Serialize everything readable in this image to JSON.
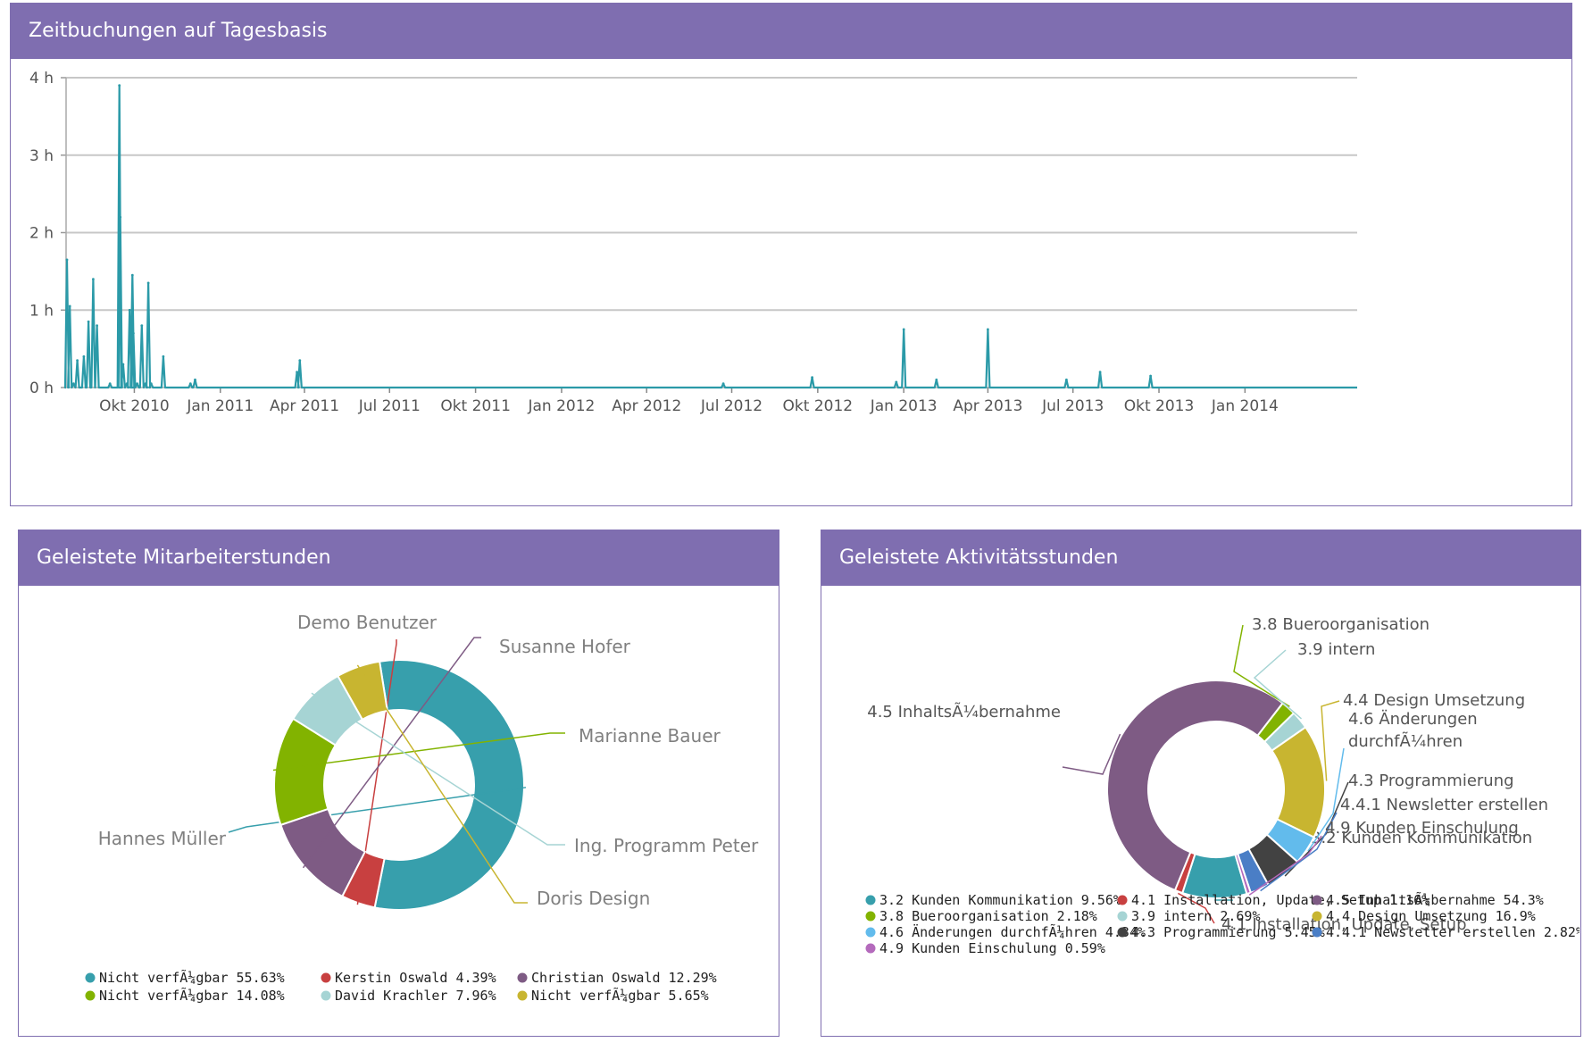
{
  "colors": {
    "header": "#7f6eb0",
    "line": "#2b9aa8",
    "grid": "#c7c7c7"
  },
  "time_panel": {
    "title": "Zeitbuchungen auf Tagesbasis"
  },
  "emp_panel": {
    "title": "Geleistete Mitarbeiterstunden"
  },
  "act_panel": {
    "title": "Geleistete Aktivitätsstunden"
  },
  "chart_data": [
    {
      "type": "line",
      "title": "Zeitbuchungen auf Tagesbasis",
      "ylim": [
        0,
        4
      ],
      "y_ticks": [
        "0 h",
        "1 h",
        "2 h",
        "3 h",
        "4 h"
      ],
      "x_ticks": [
        "Okt 2010",
        "Jan 2011",
        "Apr 2011",
        "Jul 2011",
        "Okt 2011",
        "Jan 2012",
        "Apr 2012",
        "Jul 2012",
        "Okt 2012",
        "Jan 2013",
        "Apr 2013",
        "Jul 2013",
        "Okt 2013",
        "Jan 2014"
      ],
      "x_range": [
        "2010-07-20",
        "2014-05-01"
      ],
      "grid": true,
      "series": [
        {
          "color": "#2b9aa8",
          "points": [
            [
              "2010-07-21",
              1.65
            ],
            [
              "2010-07-24",
              1.05
            ],
            [
              "2010-07-28",
              0.05
            ],
            [
              "2010-08-01",
              0.35
            ],
            [
              "2010-08-08",
              0.4
            ],
            [
              "2010-08-13",
              0.85
            ],
            [
              "2010-08-18",
              1.4
            ],
            [
              "2010-08-22",
              0.8
            ],
            [
              "2010-09-05",
              0.05
            ],
            [
              "2010-09-15",
              3.9
            ],
            [
              "2010-09-16",
              2.2
            ],
            [
              "2010-09-19",
              0.3
            ],
            [
              "2010-09-23",
              0.05
            ],
            [
              "2010-09-26",
              1.0
            ],
            [
              "2010-09-29",
              1.45
            ],
            [
              "2010-09-30",
              0.7
            ],
            [
              "2010-10-04",
              0.05
            ],
            [
              "2010-10-09",
              0.8
            ],
            [
              "2010-10-13",
              0.05
            ],
            [
              "2010-10-16",
              1.35
            ],
            [
              "2010-10-19",
              0.05
            ],
            [
              "2010-11-01",
              0.4
            ],
            [
              "2010-11-30",
              0.05
            ],
            [
              "2010-12-05",
              0.1
            ],
            [
              "2011-03-24",
              0.2
            ],
            [
              "2011-03-27",
              0.35
            ],
            [
              "2012-06-22",
              0.05
            ],
            [
              "2012-09-25",
              0.13
            ],
            [
              "2012-12-24",
              0.07
            ],
            [
              "2013-01-01",
              0.75
            ],
            [
              "2013-02-05",
              0.1
            ],
            [
              "2013-04-01",
              0.75
            ],
            [
              "2013-06-24",
              0.1
            ],
            [
              "2013-07-30",
              0.2
            ],
            [
              "2013-09-22",
              0.15
            ]
          ]
        }
      ]
    },
    {
      "type": "pie",
      "title": "Geleistete Mitarbeiterstunden",
      "slices": [
        {
          "label": "Hannes Müller",
          "legend": "Nicht verfÃ¼gbar 55.63%",
          "value": 55.63,
          "color": "#379fac"
        },
        {
          "label": "Demo Benutzer",
          "legend": "Kerstin Oswald 4.39%",
          "value": 4.39,
          "color": "#c84040"
        },
        {
          "label": "Susanne Hofer",
          "legend": "Christian Oswald 12.29%",
          "value": 12.29,
          "color": "#7e5b84"
        },
        {
          "label": "Marianne  Bauer",
          "legend": "Nicht verfÃ¼gbar 14.08%",
          "value": 14.08,
          "color": "#82b300"
        },
        {
          "label": "Ing. Programm Peter",
          "legend": "David Krachler 7.96%",
          "value": 7.96,
          "color": "#a6d4d4"
        },
        {
          "label": "Doris Design",
          "legend": "Nicht verfÃ¼gbar 5.65%",
          "value": 5.65,
          "color": "#c8b530"
        }
      ]
    },
    {
      "type": "pie",
      "title": "Geleistete Aktivitätsstunden",
      "slices": [
        {
          "label": "3.2  Kunden Kommunikation",
          "legend": "3.2  Kunden Kommunikation 9.56%",
          "value": 9.56,
          "color": "#379fac"
        },
        {
          "label": "4.1 Installation, Update, Setup",
          "legend": "4.1 Installation, Update, Setup 1.16%",
          "value": 1.16,
          "color": "#c84040"
        },
        {
          "label": "4.5 InhaltsÃ¼bernahme",
          "legend": "4.5 InhaltsÃ¼bernahme 54.3%",
          "value": 54.3,
          "color": "#7e5b84"
        },
        {
          "label": "3.8 Bueroorganisation",
          "legend": "3.8 Bueroorganisation 2.18%",
          "value": 2.18,
          "color": "#82b300"
        },
        {
          "label": "3.9 intern",
          "legend": "3.9 intern 2.69%",
          "value": 2.69,
          "color": "#a6d4d4"
        },
        {
          "label": "4.4 Design Umsetzung",
          "legend": "4.4 Design Umsetzung 16.9%",
          "value": 16.9,
          "color": "#c8b530"
        },
        {
          "label": "4.6 Änderungen durchfÃ¼hren",
          "legend": "4.6 Änderungen durchfÃ¼hren 4.34%",
          "value": 4.34,
          "color": "#62bbec"
        },
        {
          "label": "4.3 Programmierung",
          "legend": "4.3 Programmierung 5.45%",
          "value": 5.45,
          "color": "#424242"
        },
        {
          "label": "4.4.1 Newsletter erstellen",
          "legend": "4.4.1 Newsletter erstellen 2.82%",
          "value": 2.82,
          "color": "#4a7ec6"
        },
        {
          "label": "4.9 Kunden Einschulung",
          "legend": "4.9 Kunden Einschulung 0.59%",
          "value": 0.59,
          "color": "#b46abc"
        }
      ]
    }
  ]
}
